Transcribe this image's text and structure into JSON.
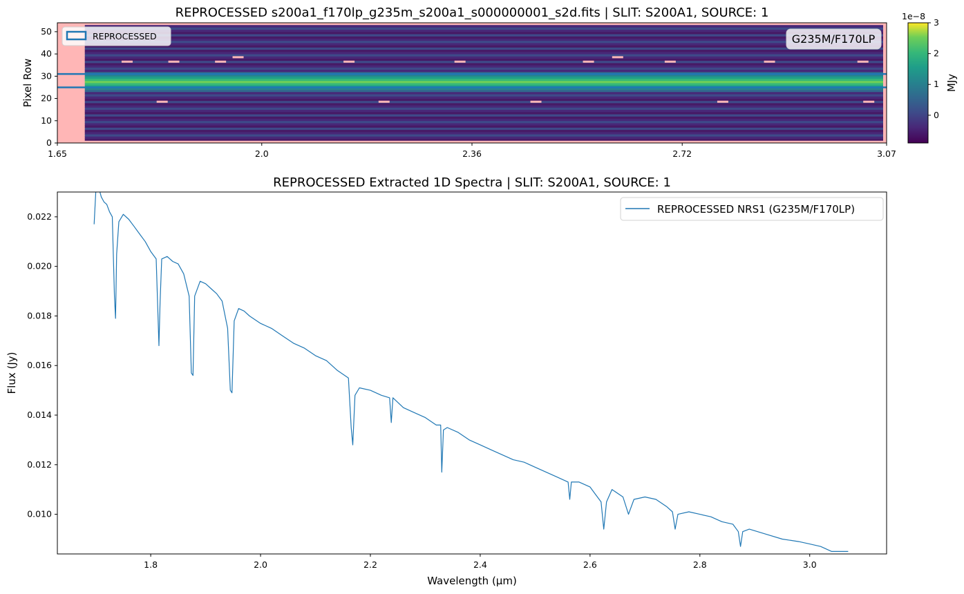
{
  "chart_data": [
    {
      "type": "heatmap",
      "title": "REPROCESSED s200a1_f170lp_g235m_s200a1_s000000001_s2d.fits | SLIT: S200A1, SOURCE: 1",
      "xlabel": "",
      "ylabel": "Pixel Row",
      "x_ticks": [
        "1.65",
        "2.0",
        "2.36",
        "2.72",
        "3.07"
      ],
      "x_tick_values": [
        1.65,
        2.0,
        2.36,
        2.72,
        3.07
      ],
      "xlim": [
        1.65,
        3.07
      ],
      "y_ticks": [
        0,
        10,
        20,
        30,
        40,
        50
      ],
      "ylim": [
        0,
        54
      ],
      "legend": {
        "label": "REPROCESSED",
        "placement": "upper-left"
      },
      "annotation": "G235M/F170LP",
      "extraction_rows": [
        25,
        31
      ],
      "trace_row": 27,
      "masked_x_end": 1.697,
      "colorbar": {
        "label": "MJy",
        "offset_text": "1e−8",
        "ticks": [
          "0",
          "1",
          "2",
          "3"
        ],
        "tick_values": [
          0,
          1,
          2,
          3
        ],
        "range": [
          -0.9,
          3.0
        ]
      },
      "colors": {
        "masked": "#ffb6b6",
        "line": "#1f77b4"
      }
    },
    {
      "type": "line",
      "title": "REPROCESSED Extracted 1D Spectra | SLIT: S200A1, SOURCE: 1",
      "xlabel": "Wavelength (µm)",
      "ylabel": "Flux (Jy)",
      "xlim": [
        1.63,
        3.14
      ],
      "ylim": [
        0.0084,
        0.023
      ],
      "x_ticks": [
        "1.8",
        "2.0",
        "2.2",
        "2.4",
        "2.6",
        "2.8",
        "3.0"
      ],
      "x_tick_values": [
        1.8,
        2.0,
        2.2,
        2.4,
        2.6,
        2.8,
        3.0
      ],
      "y_ticks": [
        "0.010",
        "0.012",
        "0.014",
        "0.016",
        "0.018",
        "0.020",
        "0.022"
      ],
      "y_tick_values": [
        0.01,
        0.012,
        0.014,
        0.016,
        0.018,
        0.02,
        0.022
      ],
      "legend_placement": "upper-right",
      "series": [
        {
          "name": "REPROCESSED NRS1 (G235M/F170LP)",
          "color": "#1f77b4",
          "x": [
            1.697,
            1.7,
            1.705,
            1.71,
            1.715,
            1.72,
            1.725,
            1.73,
            1.734,
            1.736,
            1.738,
            1.742,
            1.75,
            1.76,
            1.77,
            1.78,
            1.79,
            1.8,
            1.81,
            1.815,
            1.817,
            1.82,
            1.83,
            1.84,
            1.85,
            1.86,
            1.87,
            1.874,
            1.877,
            1.88,
            1.89,
            1.9,
            1.91,
            1.92,
            1.93,
            1.94,
            1.945,
            1.948,
            1.952,
            1.96,
            1.97,
            1.98,
            2.0,
            2.02,
            2.04,
            2.06,
            2.08,
            2.1,
            2.12,
            2.14,
            2.16,
            2.165,
            2.168,
            2.172,
            2.18,
            2.2,
            2.22,
            2.235,
            2.238,
            2.241,
            2.26,
            2.28,
            2.3,
            2.32,
            2.328,
            2.33,
            2.333,
            2.34,
            2.36,
            2.38,
            2.4,
            2.42,
            2.44,
            2.46,
            2.48,
            2.5,
            2.52,
            2.54,
            2.56,
            2.563,
            2.566,
            2.58,
            2.6,
            2.61,
            2.62,
            2.625,
            2.63,
            2.64,
            2.66,
            2.67,
            2.68,
            2.7,
            2.72,
            2.74,
            2.75,
            2.755,
            2.76,
            2.78,
            2.8,
            2.82,
            2.84,
            2.86,
            2.87,
            2.874,
            2.878,
            2.89,
            2.92,
            2.95,
            2.98,
            3.0,
            3.02,
            3.04,
            3.06,
            3.07
          ],
          "y": [
            0.0217,
            0.023,
            0.0232,
            0.0228,
            0.0226,
            0.0225,
            0.0222,
            0.022,
            0.0188,
            0.0179,
            0.0205,
            0.0218,
            0.0221,
            0.0219,
            0.0216,
            0.0213,
            0.021,
            0.0206,
            0.0203,
            0.0168,
            0.0185,
            0.0203,
            0.0204,
            0.0202,
            0.0201,
            0.0197,
            0.0188,
            0.0157,
            0.0156,
            0.0188,
            0.0194,
            0.0193,
            0.0191,
            0.0189,
            0.0186,
            0.0175,
            0.015,
            0.0149,
            0.0178,
            0.0183,
            0.0182,
            0.018,
            0.0177,
            0.0175,
            0.0172,
            0.0169,
            0.0167,
            0.0164,
            0.0162,
            0.0158,
            0.0155,
            0.0135,
            0.0128,
            0.0148,
            0.0151,
            0.015,
            0.0148,
            0.0147,
            0.0137,
            0.0147,
            0.0143,
            0.0141,
            0.0139,
            0.0136,
            0.0136,
            0.0117,
            0.0134,
            0.0135,
            0.0133,
            0.013,
            0.0128,
            0.0126,
            0.0124,
            0.0122,
            0.0121,
            0.0119,
            0.0117,
            0.0115,
            0.0113,
            0.0106,
            0.0113,
            0.0113,
            0.0111,
            0.0108,
            0.0105,
            0.0094,
            0.0105,
            0.011,
            0.0107,
            0.01,
            0.0106,
            0.0107,
            0.0106,
            0.0103,
            0.0101,
            0.0094,
            0.01,
            0.0101,
            0.01,
            0.0099,
            0.0097,
            0.0096,
            0.0093,
            0.0087,
            0.0093,
            0.0094,
            0.0092,
            0.009,
            0.0089,
            0.0088,
            0.0087,
            0.0085,
            0.0085,
            0.0085
          ]
        }
      ]
    }
  ]
}
